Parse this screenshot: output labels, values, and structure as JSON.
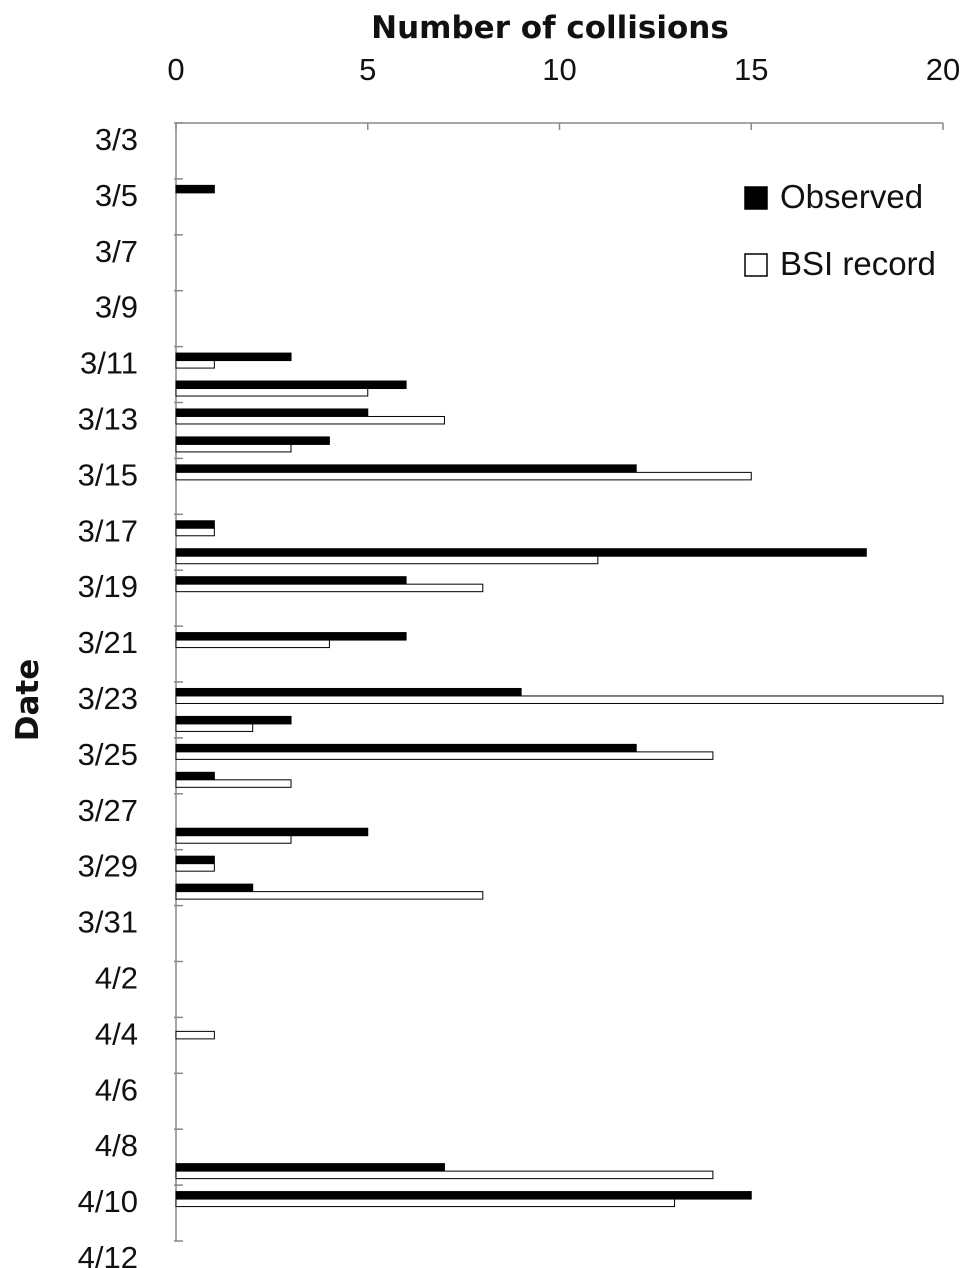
{
  "chart_data": {
    "type": "bar",
    "orientation": "horizontal",
    "xlabel": "Number of collisions",
    "ylabel": "Date",
    "xlim": [
      0,
      20
    ],
    "x_ticks": [
      0,
      5,
      10,
      15,
      20
    ],
    "y_tick_labels": [
      "3/3",
      "3/5",
      "3/7",
      "3/9",
      "3/11",
      "3/13",
      "3/15",
      "3/17",
      "3/19",
      "3/21",
      "3/23",
      "3/25",
      "3/27",
      "3/29",
      "3/31",
      "4/2",
      "4/4",
      "4/6",
      "4/8",
      "4/10",
      "4/12"
    ],
    "categories": [
      "3/3",
      "3/4",
      "3/5",
      "3/6",
      "3/7",
      "3/8",
      "3/9",
      "3/10",
      "3/11",
      "3/12",
      "3/13",
      "3/14",
      "3/15",
      "3/16",
      "3/17",
      "3/18",
      "3/19",
      "3/20",
      "3/21",
      "3/22",
      "3/23",
      "3/24",
      "3/25",
      "3/26",
      "3/27",
      "3/28",
      "3/29",
      "3/30",
      "3/31",
      "4/1",
      "4/2",
      "4/3",
      "4/4",
      "4/5",
      "4/6",
      "4/7",
      "4/8",
      "4/9",
      "4/10",
      "4/11"
    ],
    "series": [
      {
        "name": "Observed",
        "color": "#000000",
        "values": [
          0,
          0,
          1,
          0,
          0,
          0,
          0,
          0,
          3,
          6,
          5,
          4,
          12,
          0,
          1,
          18,
          6,
          0,
          6,
          0,
          9,
          3,
          12,
          1,
          0,
          5,
          1,
          2,
          0,
          0,
          0,
          0,
          0,
          0,
          0,
          0,
          0,
          7,
          15,
          0
        ]
      },
      {
        "name": "BSI record",
        "color": "#ffffff",
        "values": [
          0,
          0,
          0,
          0,
          0,
          0,
          0,
          0,
          1,
          5,
          7,
          3,
          15,
          0,
          1,
          11,
          8,
          0,
          4,
          0,
          20,
          2,
          14,
          3,
          0,
          3,
          1,
          8,
          0,
          0,
          0,
          0,
          1,
          0,
          0,
          0,
          0,
          14,
          13,
          0
        ]
      }
    ],
    "grid": false,
    "legend_position": "top-right"
  },
  "legend": {
    "items": [
      {
        "label": "Observed",
        "swatch": "filled-black"
      },
      {
        "label": "BSI record",
        "swatch": "outlined-white"
      }
    ]
  }
}
